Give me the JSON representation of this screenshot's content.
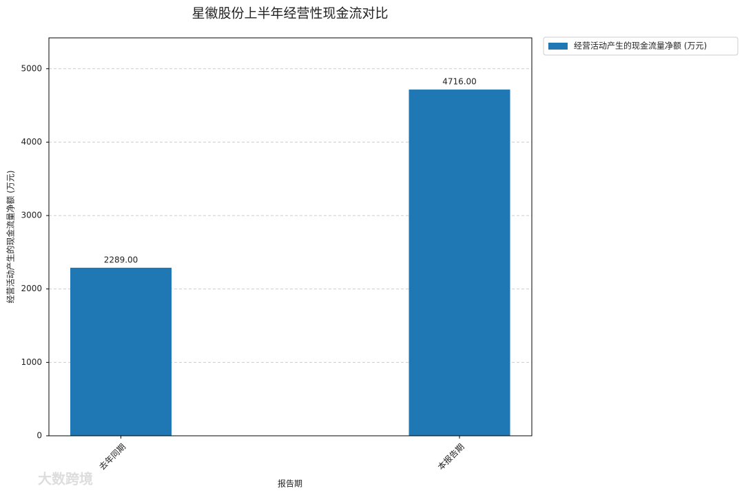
{
  "chart_data": {
    "type": "bar",
    "title": "星徽股份上半年经营性现金流对比",
    "x_label": "报告期",
    "y_label": "经营活动产生的现金流量净额 (万元)",
    "categories": [
      "去年同期",
      "本报告期"
    ],
    "series": [
      {
        "name": "经营活动产生的现金流量净额 (万元)",
        "color": "#1f77b4",
        "values": [
          2289,
          4716
        ],
        "value_labels": [
          "2289.00",
          "4716.00"
        ]
      }
    ],
    "ylim": [
      0,
      5420
    ],
    "yticks": [
      0,
      1000,
      2000,
      3000,
      4000,
      5000
    ],
    "grid": true,
    "legend": "outside-upper-right",
    "watermark": "大数跨境"
  }
}
